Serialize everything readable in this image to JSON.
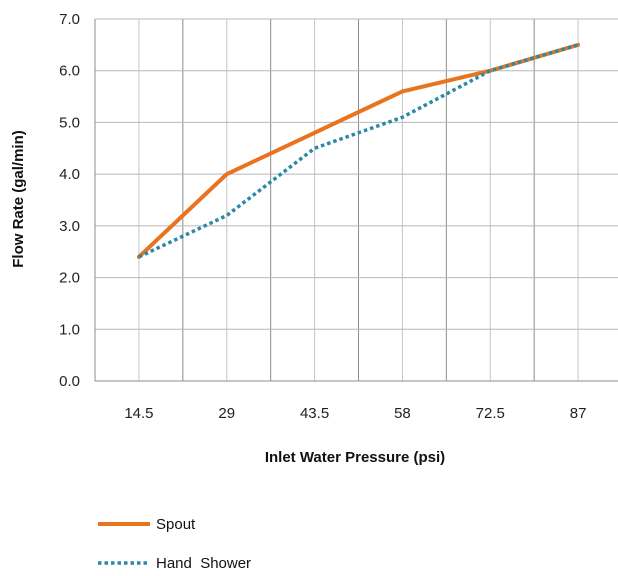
{
  "chart_data": {
    "type": "line",
    "categories": [
      "14.5",
      "29",
      "43.5",
      "58",
      "72.5",
      "87"
    ],
    "series": [
      {
        "name": "Spout",
        "values": [
          2.4,
          4.0,
          4.8,
          5.6,
          6.0,
          6.5
        ],
        "color": "#e8741f",
        "style": "solid"
      },
      {
        "name": "Hand  Shower",
        "values": [
          2.4,
          3.2,
          4.5,
          5.1,
          6.0,
          6.5
        ],
        "color": "#2a8aa5",
        "style": "dotted"
      }
    ],
    "yticks": [
      "0.0",
      "1.0",
      "2.0",
      "3.0",
      "4.0",
      "5.0",
      "6.0",
      "7.0"
    ],
    "ylim": [
      0,
      7
    ],
    "xlabel": "Inlet Water Pressure (psi)",
    "ylabel": "Flow Rate (gal/min)",
    "grid": true,
    "legend_position": "bottom-left"
  }
}
